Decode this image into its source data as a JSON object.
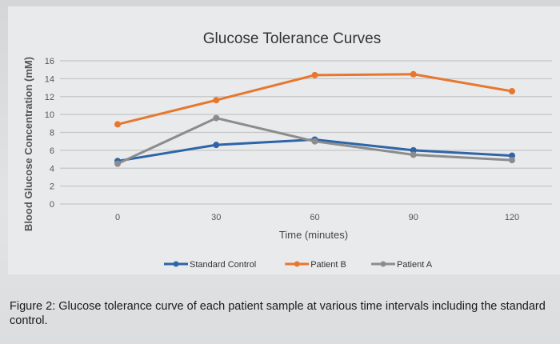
{
  "chart_data": {
    "type": "line",
    "title": "Glucose Tolerance Curves",
    "xlabel": "Time (minutes)",
    "ylabel": "Blood Glucose Concentration (mM)",
    "x": [
      0,
      30,
      60,
      90,
      120
    ],
    "x_tick_labels": [
      "0",
      "30",
      "60",
      "90",
      "120"
    ],
    "y_tick_labels": [
      "0",
      "2",
      "4",
      "6",
      "8",
      "10",
      "12",
      "14",
      "16"
    ],
    "ylim": [
      0,
      16
    ],
    "grid": true,
    "legend_position": "bottom",
    "series": [
      {
        "name": "Standard Control",
        "color": "#2e64a8",
        "values": [
          4.8,
          6.6,
          7.2,
          6.0,
          5.4
        ]
      },
      {
        "name": "Patient B",
        "color": "#e8772e",
        "values": [
          8.9,
          11.6,
          14.4,
          14.5,
          12.6
        ]
      },
      {
        "name": "Patient A",
        "color": "#8c8c8c",
        "values": [
          4.5,
          9.6,
          7.0,
          5.5,
          4.9
        ]
      }
    ]
  },
  "caption": "Figure 2: Glucose tolerance curve of each patient sample at various time intervals including the standard control."
}
